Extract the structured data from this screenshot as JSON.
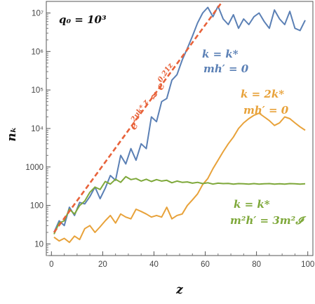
{
  "chart_data": {
    "type": "line",
    "title": "",
    "param_label": "q₀ = 10³",
    "xlabel": "z",
    "ylabel": "nₖ",
    "y_scale": "log",
    "xlim": [
      -2,
      102
    ],
    "ylim": [
      5,
      20000000
    ],
    "x_ticks": [
      0,
      20,
      40,
      60,
      80,
      100
    ],
    "y_ticks": [
      {
        "value": 10,
        "label": "10"
      },
      {
        "value": 100,
        "label": "100"
      },
      {
        "value": 1000,
        "label": "1000"
      },
      {
        "value": 10000,
        "label": "10⁴"
      },
      {
        "value": 100000,
        "label": "10⁵"
      },
      {
        "value": 1000000,
        "label": "10⁶"
      },
      {
        "value": 10000000,
        "label": "10⁷"
      }
    ],
    "grid": false,
    "series": [
      {
        "name_lines": [
          "k = k*",
          "mh′ = 0"
        ],
        "color": "#5b80b5",
        "x": [
          1,
          3,
          5,
          7,
          9,
          11,
          13,
          15,
          17,
          19,
          21,
          23,
          25,
          27,
          29,
          31,
          33,
          35,
          37,
          39,
          41,
          43,
          45,
          47,
          49,
          51,
          53,
          55,
          57,
          59,
          61,
          63,
          65,
          67,
          69,
          71,
          73,
          75,
          77,
          79,
          81,
          83,
          85,
          87,
          89,
          91,
          93,
          95,
          97,
          99
        ],
        "y": [
          20,
          40,
          30,
          90,
          55,
          120,
          110,
          170,
          300,
          150,
          280,
          600,
          450,
          2000,
          1200,
          3000,
          1500,
          4000,
          3000,
          20000,
          15000,
          50000,
          60000,
          180000,
          250000,
          600000,
          1200000,
          2500000,
          5500000,
          10000000,
          14000000,
          8000000,
          15000000,
          7000000,
          5000000,
          9000000,
          4000000,
          7000000,
          5000000,
          8000000,
          10000000,
          6000000,
          4000000,
          12000000,
          7000000,
          5000000,
          11000000,
          4000000,
          3500000,
          6500000
        ]
      },
      {
        "name_lines": [
          "k = 2k*",
          "mh′ = 0"
        ],
        "color": "#e8a23a",
        "x": [
          1,
          3,
          5,
          7,
          9,
          11,
          13,
          15,
          17,
          19,
          21,
          23,
          25,
          27,
          29,
          31,
          33,
          35,
          37,
          39,
          41,
          43,
          45,
          47,
          49,
          51,
          53,
          55,
          57,
          59,
          61,
          63,
          65,
          67,
          69,
          71,
          73,
          75,
          77,
          79,
          81,
          83,
          85,
          87,
          89,
          91,
          93,
          95,
          97,
          99
        ],
        "y": [
          15,
          12,
          14,
          11,
          16,
          13,
          25,
          30,
          20,
          28,
          40,
          55,
          35,
          60,
          50,
          45,
          80,
          70,
          60,
          50,
          55,
          50,
          90,
          45,
          55,
          60,
          100,
          140,
          200,
          350,
          500,
          900,
          1500,
          2500,
          4000,
          6000,
          10000,
          14000,
          18000,
          22000,
          25000,
          20000,
          16000,
          12000,
          14000,
          20000,
          18000,
          14000,
          11000,
          9000
        ]
      },
      {
        "name_lines": [
          "k = k*",
          "m²h′ = 3m²𝓘"
        ],
        "color": "#7ea83a",
        "x": [
          1,
          3,
          5,
          7,
          9,
          11,
          13,
          15,
          17,
          19,
          21,
          23,
          25,
          27,
          29,
          31,
          33,
          35,
          37,
          39,
          41,
          43,
          45,
          47,
          49,
          51,
          53,
          55,
          57,
          59,
          61,
          63,
          65,
          67,
          69,
          71,
          73,
          75,
          77,
          79,
          81,
          83,
          85,
          87,
          89,
          91,
          93,
          95,
          97,
          99
        ],
        "y": [
          18,
          35,
          40,
          80,
          60,
          100,
          130,
          220,
          300,
          260,
          420,
          360,
          480,
          400,
          560,
          470,
          500,
          430,
          480,
          420,
          470,
          430,
          450,
          390,
          430,
          400,
          410,
          380,
          400,
          370,
          390,
          360,
          380,
          370,
          375,
          360,
          370,
          365,
          360,
          370,
          360,
          365,
          370,
          360,
          365,
          360,
          370,
          365,
          360,
          365
        ]
      }
    ],
    "fit_line": {
      "label_parts": [
        "e",
        "2μk* z",
        " ≈ ",
        "e",
        "0.21z"
      ],
      "color": "#e8623a",
      "x": [
        1,
        70
      ],
      "y": [
        20,
        40000000
      ]
    }
  }
}
